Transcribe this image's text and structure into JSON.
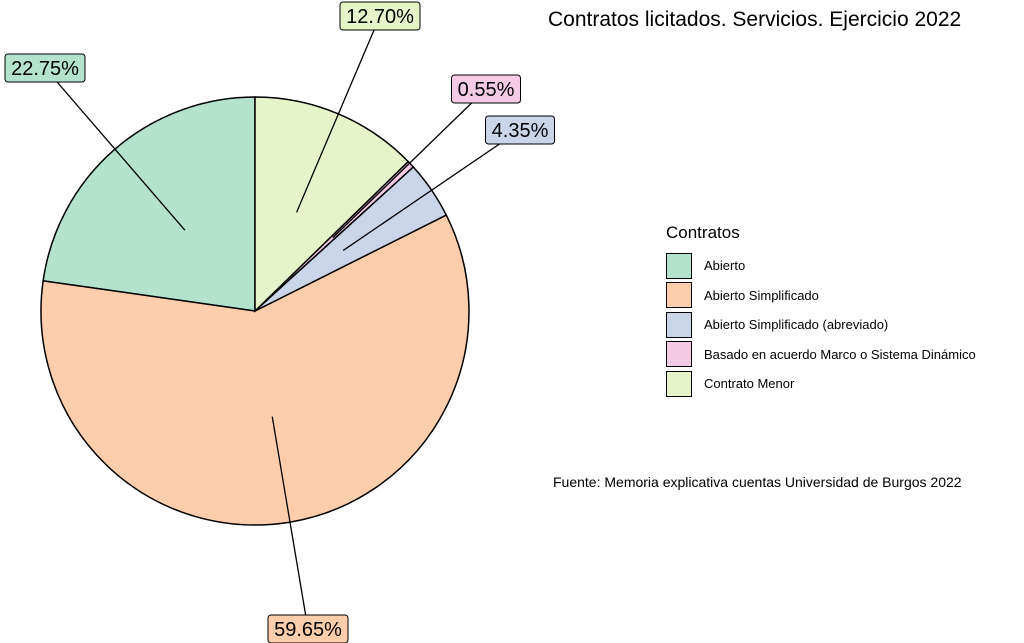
{
  "chart_data": {
    "type": "pie",
    "title": "Contratos licitados. Servicios. Ejercicio 2022",
    "categories": [
      "Abierto",
      "Abierto Simplificado",
      "Abierto Simplificado (abreviado)",
      "Basado en acuerdo Marco o Sistema Dinámico",
      "Contrato Menor"
    ],
    "values": [
      22.75,
      59.65,
      4.35,
      0.55,
      12.7
    ],
    "labels": [
      "22.75%",
      "59.65%",
      "4.35%",
      "0.55%",
      "12.70%"
    ],
    "colors": [
      "#b3e2cd",
      "#fdcdac",
      "#cbd5e8",
      "#f4cae4",
      "#e6f5c9"
    ],
    "legend": {
      "title": "Contratos",
      "position": "right"
    },
    "caption": "Fuente: Memoria explicativa cuentas Universidad de Burgos 2022"
  }
}
